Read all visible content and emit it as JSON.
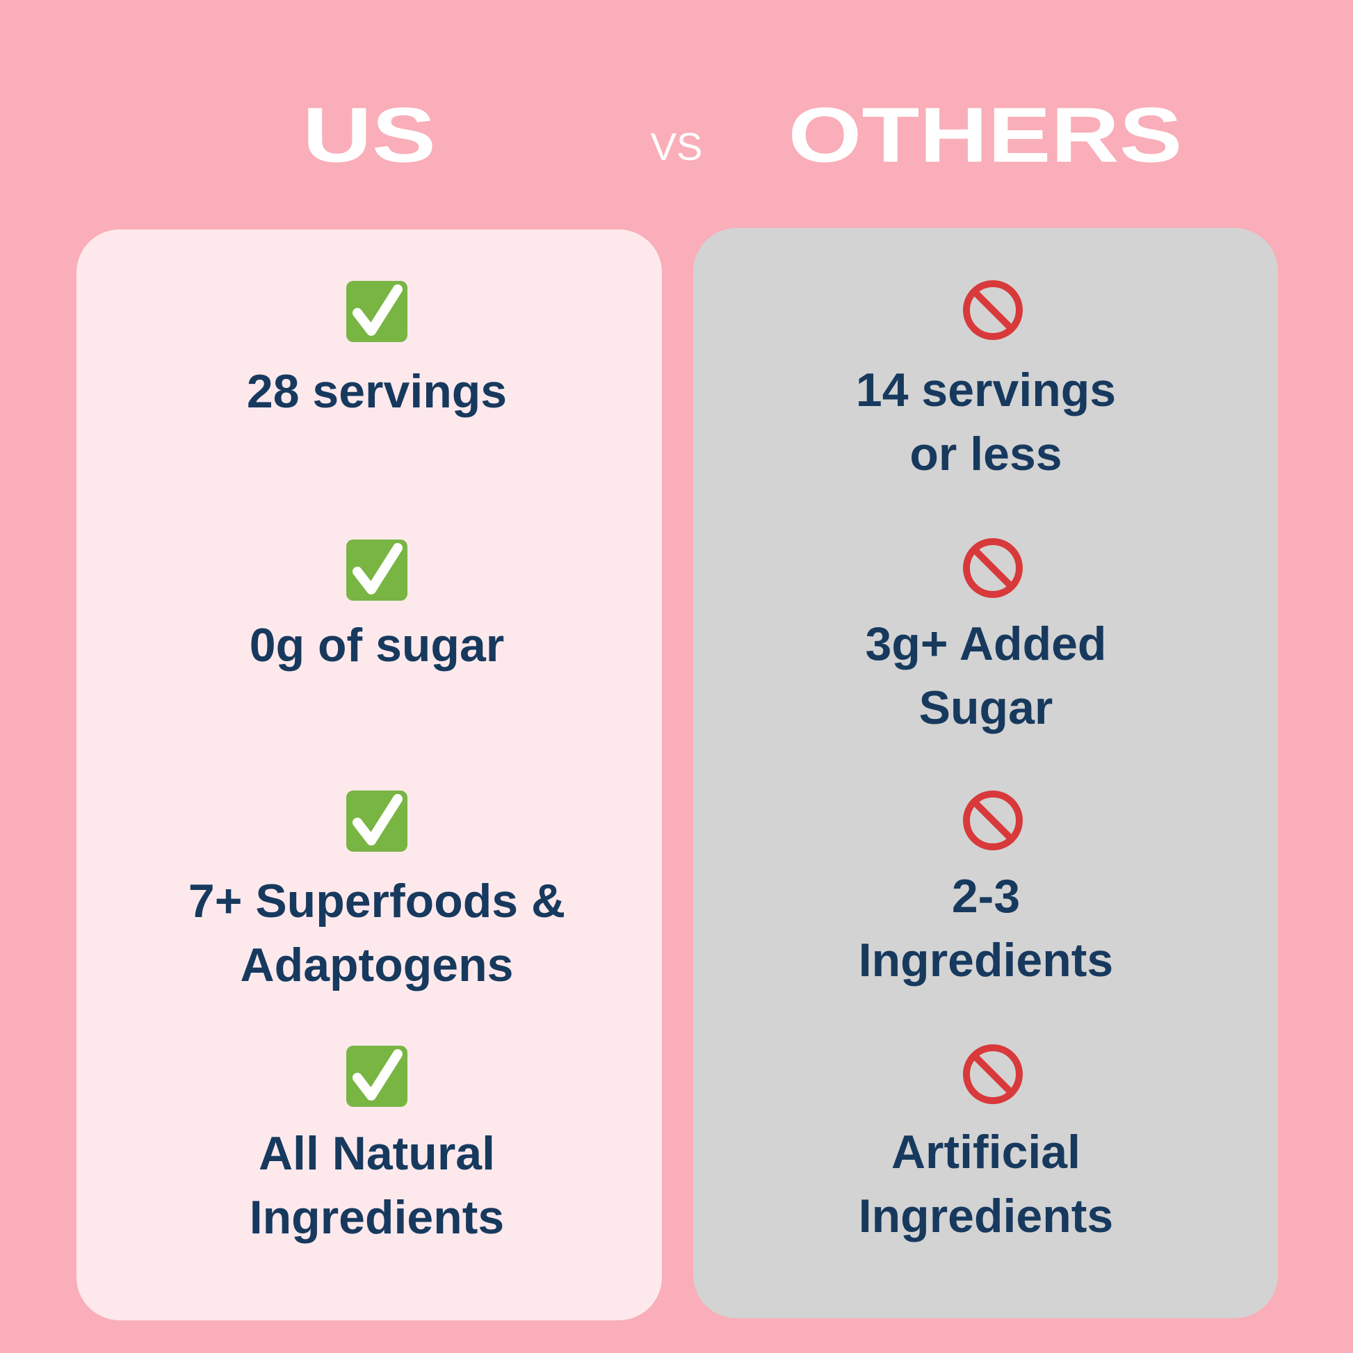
{
  "header": {
    "us": "US",
    "vs": "VS",
    "others": "OTHERS"
  },
  "us": {
    "items": [
      [
        "28 servings"
      ],
      [
        "0g of sugar"
      ],
      [
        "7+ Superfoods &",
        "Adaptogens"
      ],
      [
        "All Natural",
        "Ingredients"
      ]
    ]
  },
  "others": {
    "items": [
      [
        "14 servings",
        "or less"
      ],
      [
        "3g+ Added",
        "Sugar"
      ],
      [
        "2-3",
        "Ingredients"
      ],
      [
        "Artificial",
        "Ingredients"
      ]
    ]
  }
}
